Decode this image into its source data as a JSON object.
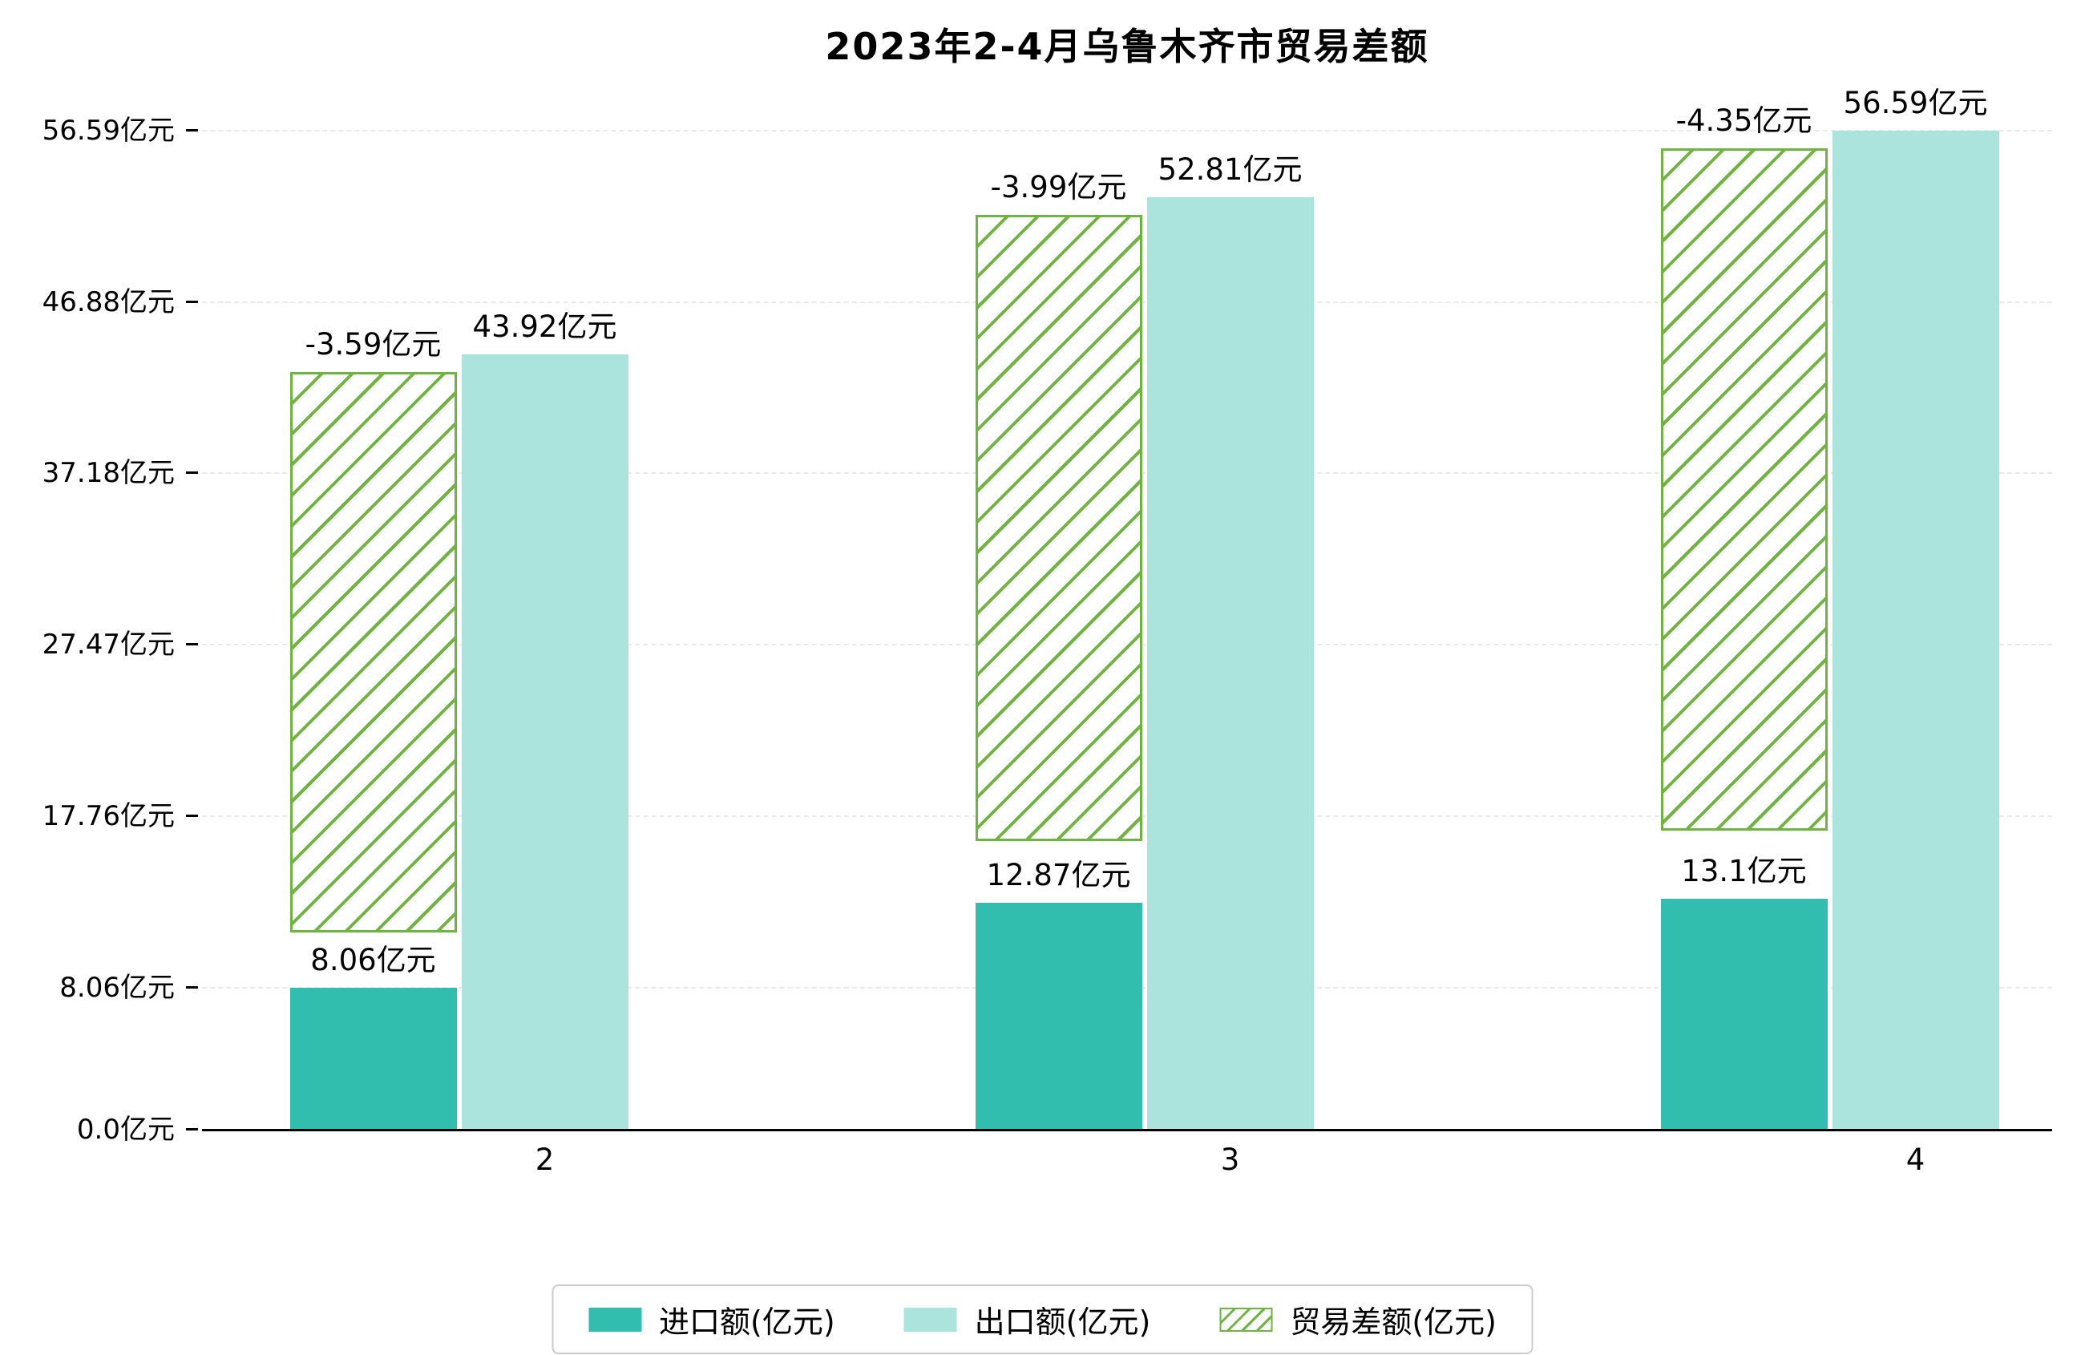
{
  "title": "2023年2-4月乌鲁木齐市贸易差额",
  "colors": {
    "import": "#32beaf",
    "export": "#abe3dd",
    "balance": "#6fb440",
    "grid": "#e9e9e9",
    "axis": "#000000",
    "legend_border": "#cccccc"
  },
  "chart_data": {
    "type": "bar",
    "title": "2023年2-4月乌鲁木齐市贸易差额",
    "categories": [
      "2",
      "3",
      "4"
    ],
    "series": [
      {
        "name": "进口额(亿元)",
        "style": "solid",
        "color": "#32beaf",
        "values": [
          8.06,
          12.87,
          13.1
        ],
        "labels": [
          "8.06亿元",
          "12.87亿元",
          "13.1亿元"
        ]
      },
      {
        "name": "出口额(亿元)",
        "style": "solid",
        "color": "#abe3dd",
        "values": [
          43.92,
          52.81,
          56.59
        ],
        "labels": [
          "43.92亿元",
          "52.81亿元",
          "56.59亿元"
        ]
      },
      {
        "name": "贸易差额(亿元)",
        "style": "hatched",
        "color": "#6fb440",
        "values": [
          -3.59,
          -3.99,
          -4.35
        ],
        "labels": [
          "-3.59亿元",
          "-3.99亿元",
          "-4.35亿元"
        ]
      }
    ],
    "xlabel": "",
    "ylabel": "",
    "yticks": [
      0.0,
      8.06,
      17.76,
      27.47,
      37.18,
      46.88,
      56.59
    ],
    "ytick_labels": [
      "0.0亿元",
      "8.06亿元",
      "17.76亿元",
      "27.47亿元",
      "37.18亿元",
      "46.88亿元",
      "56.59亿元"
    ],
    "ylim": [
      0,
      59
    ],
    "grid": "dashed-horizontal",
    "legend_position": "bottom-center"
  }
}
